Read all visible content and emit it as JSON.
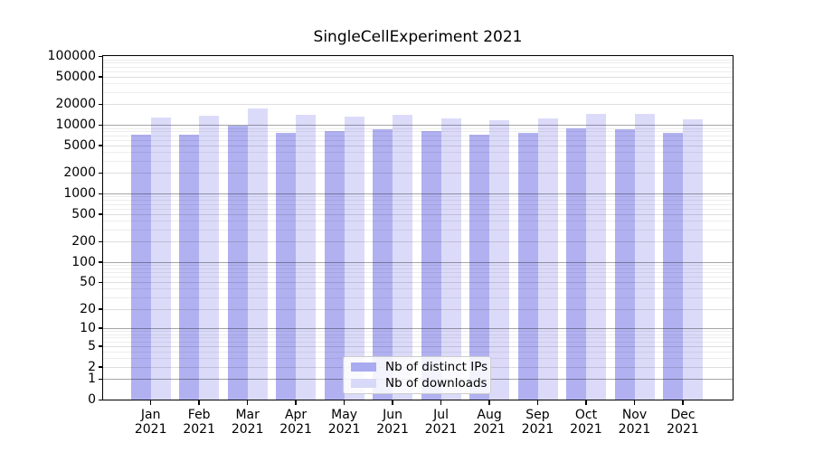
{
  "title": "SingleCellExperiment 2021",
  "colors": {
    "ips_bar": "#aaaaf0",
    "downloads_bar": "#d8d8f8",
    "axis": "#000000",
    "grid_major": "#a6a6a6",
    "grid_mid": "#e0e0e0",
    "grid_minor": "#ededed",
    "background": "#ffffff"
  },
  "legend": {
    "items": [
      {
        "label": "Nb of distinct IPs",
        "series": "ips"
      },
      {
        "label": "Nb of downloads",
        "series": "downloads"
      }
    ]
  },
  "chart_data": {
    "type": "bar",
    "title": "SingleCellExperiment 2021",
    "categories": [
      "Jan 2021",
      "Feb 2021",
      "Mar 2021",
      "Apr 2021",
      "May 2021",
      "Jun 2021",
      "Jul 2021",
      "Aug 2021",
      "Sep 2021",
      "Oct 2021",
      "Nov 2021",
      "Dec 2021"
    ],
    "series": [
      {
        "name": "Nb of distinct IPs",
        "color": "#aaaaf0",
        "values": [
          7100,
          7100,
          9600,
          7700,
          8100,
          8600,
          8100,
          7200,
          7600,
          8900,
          8650,
          7700
        ]
      },
      {
        "name": "Nb of downloads",
        "color": "#d8d8f8",
        "values": [
          12700,
          13500,
          17500,
          13800,
          13100,
          13800,
          12500,
          11700,
          12200,
          14300,
          14500,
          12000
        ]
      }
    ],
    "xlabel": "",
    "ylabel": "",
    "ylim": [
      0,
      100000
    ],
    "yticks": [
      0,
      1,
      2,
      5,
      10,
      20,
      50,
      100,
      200,
      500,
      1000,
      2000,
      5000,
      10000,
      20000,
      50000,
      100000
    ],
    "yscale": "log10(1+v), 0 at baseline",
    "grid": true,
    "legend_position": "lower center"
  }
}
